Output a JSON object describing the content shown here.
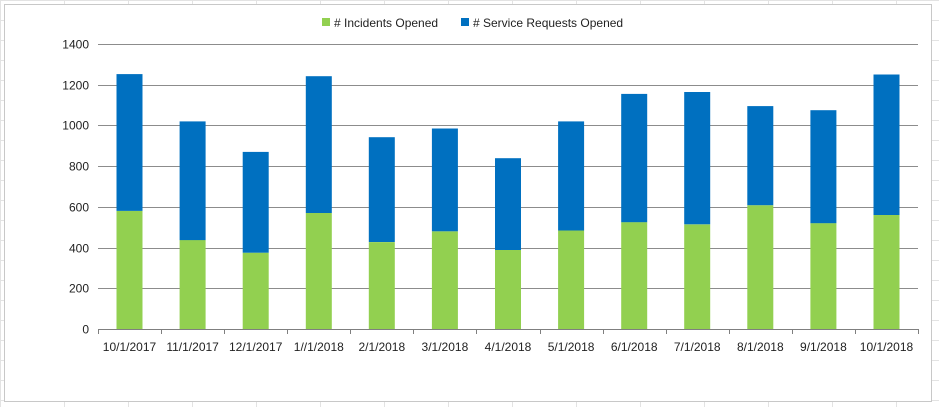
{
  "chart_data": {
    "type": "bar",
    "stacked": true,
    "categories": [
      "10/1/2017",
      "11/1/2017",
      "12/1/2017",
      "1//1/2018",
      "2/1/2018",
      "3/1/2018",
      "4/1/2018",
      "5/1/2018",
      "6/1/2018",
      "7/1/2018",
      "8/1/2018",
      "9/1/2018",
      "10/1/2018"
    ],
    "series": [
      {
        "name": "# Incidents Opened",
        "color": "#92d050",
        "values": [
          580,
          437,
          375,
          570,
          427,
          480,
          388,
          484,
          525,
          514,
          608,
          520,
          560
        ]
      },
      {
        "name": "# Service Requests Opened",
        "color": "#0070c0",
        "values": [
          672,
          583,
          495,
          672,
          515,
          505,
          451,
          536,
          630,
          650,
          487,
          555,
          690
        ]
      }
    ],
    "ylim": [
      0,
      1400
    ],
    "yticks": [
      0,
      200,
      400,
      600,
      800,
      1000,
      1200,
      1400
    ],
    "grid": true,
    "legend_position": "top"
  }
}
